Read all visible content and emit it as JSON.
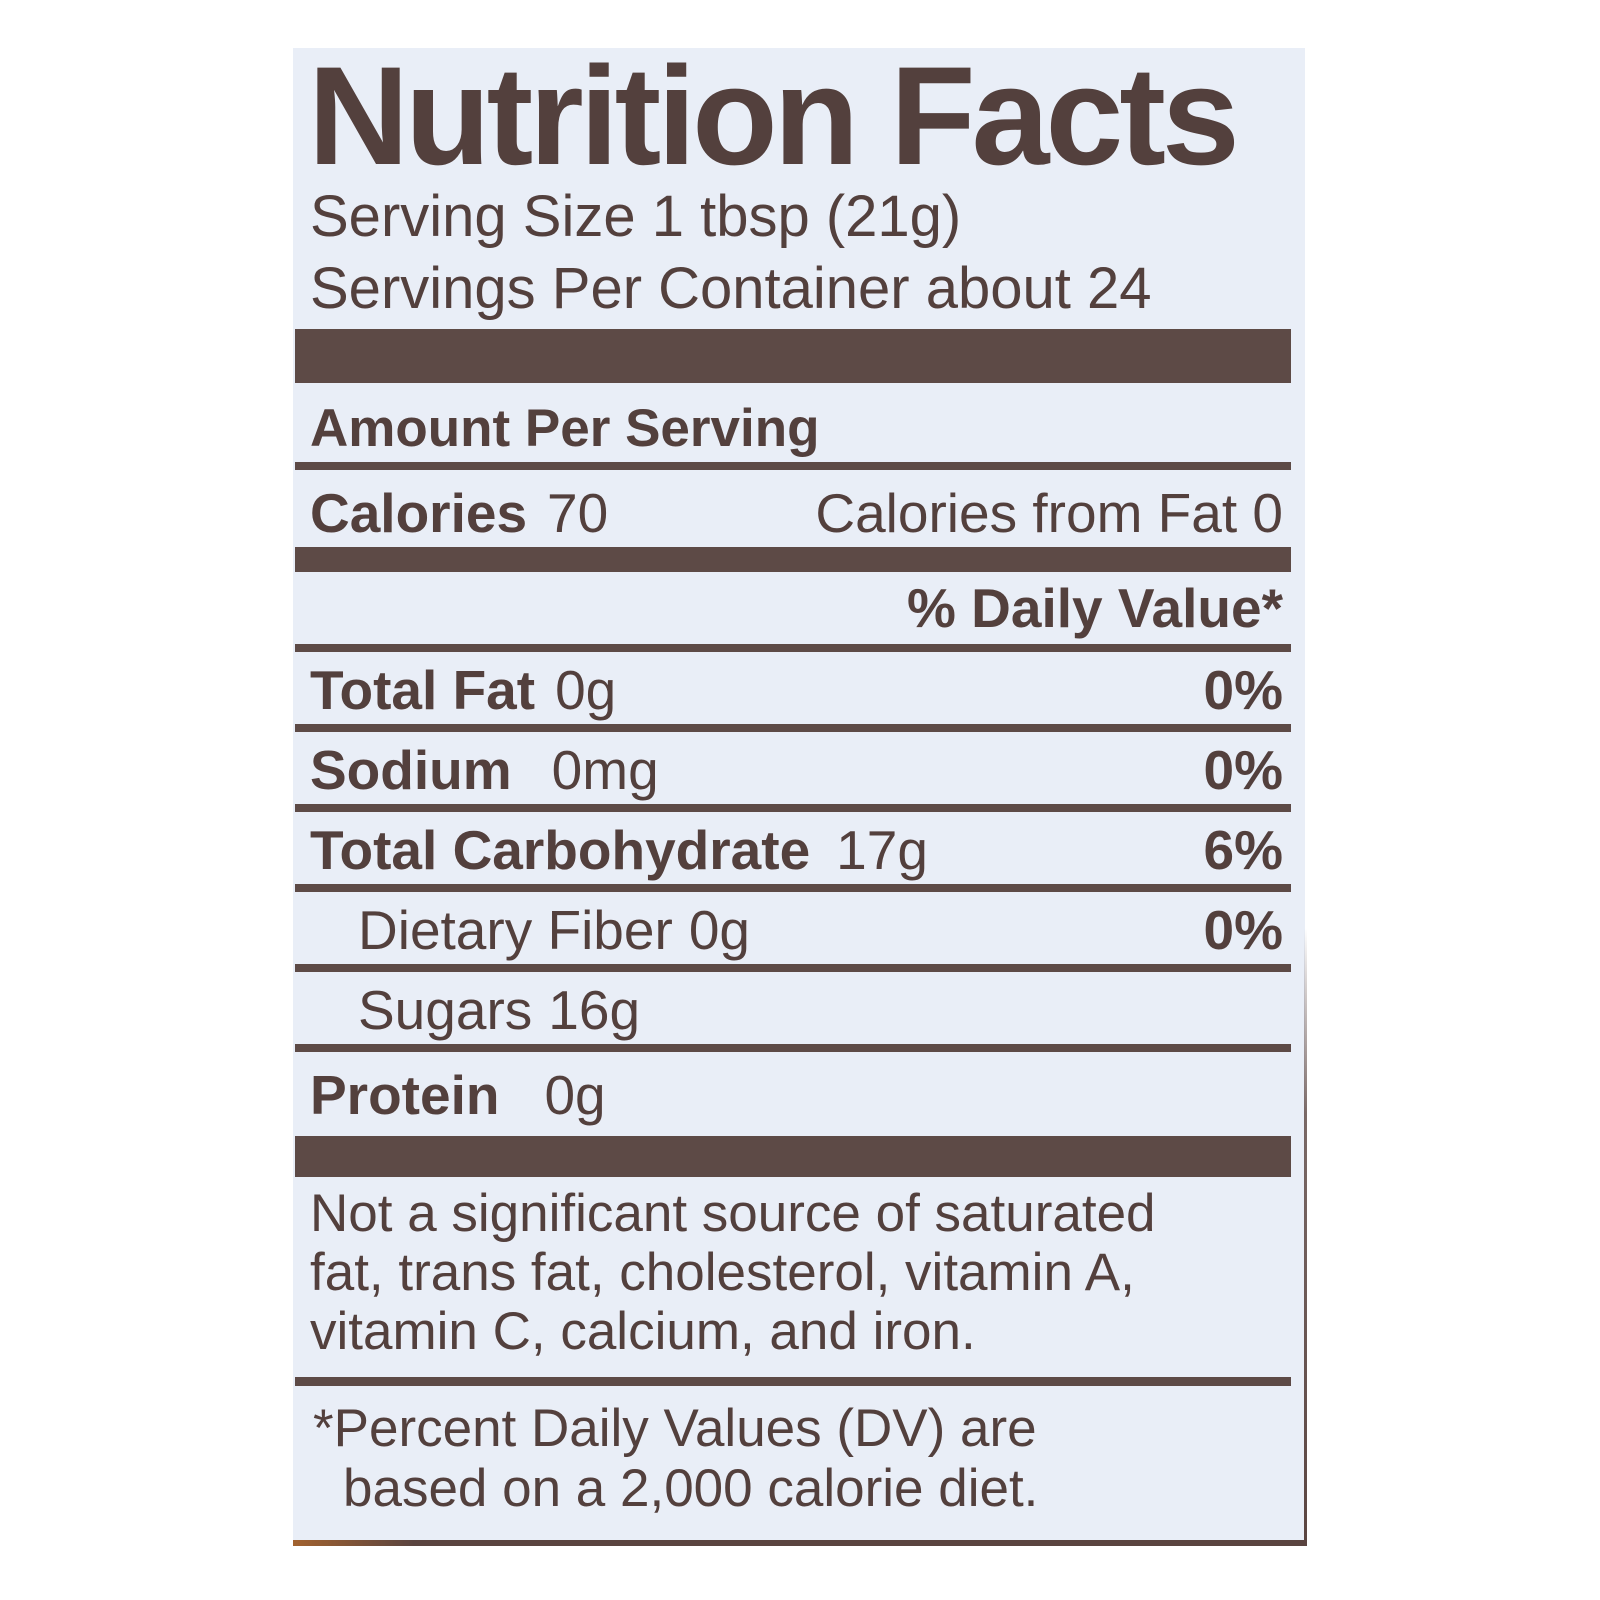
{
  "label": {
    "title": "Nutrition Facts",
    "serving_size": "Serving Size 1 tbsp (21g)",
    "servings_per_container": "Servings Per Container about 24",
    "amount_per_serving": "Amount Per Serving",
    "calories": {
      "label": "Calories",
      "value": "70",
      "from_fat": "Calories from Fat 0"
    },
    "daily_value_header": "% Daily Value*",
    "rows": [
      {
        "name": "Total Fat",
        "amount": "0g",
        "dv": "0%"
      },
      {
        "name": "Sodium",
        "amount": "0mg",
        "dv": "0%"
      },
      {
        "name": "Total Carbohydrate",
        "amount": "17g",
        "dv": "6%"
      },
      {
        "name": "Dietary Fiber",
        "amount": "0g",
        "dv": "0%"
      },
      {
        "name": "Sugars",
        "amount": "16g",
        "dv": ""
      },
      {
        "name": "Protein",
        "amount": "0g",
        "dv": ""
      }
    ],
    "note_lines": [
      "Not a significant source of saturated",
      "fat, trans fat, cholesterol, vitamin A,",
      "vitamin C, calcium, and iron."
    ],
    "footnote_lines": [
      "*Percent Daily Values (DV) are",
      "based on a 2,000 calorie diet."
    ],
    "colors": {
      "ink": "#53403d",
      "bar": "#5d4a46",
      "label_bg": "#e9eef7",
      "page_bg": "#ffffff"
    }
  }
}
